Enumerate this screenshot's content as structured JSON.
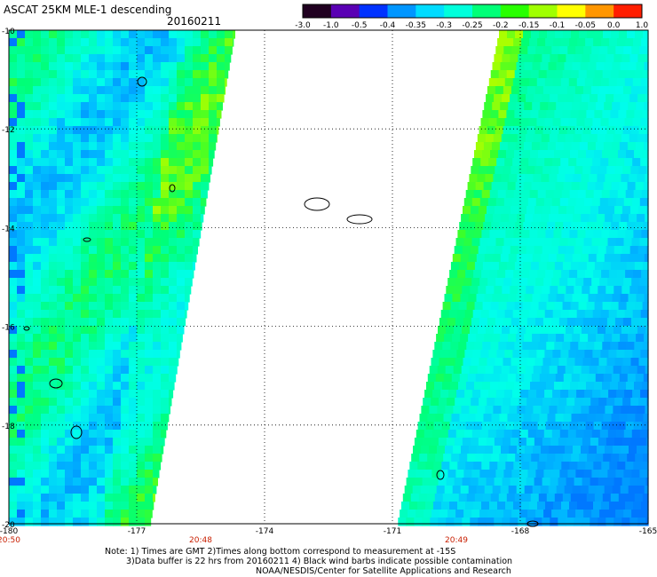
{
  "header": {
    "title": "ASCAT 25KM MLE-1 descending",
    "date": "20160211"
  },
  "colorbar": {
    "labels": [
      "-3.0",
      "-1.0",
      "-0.5",
      "-0.4",
      "-0.35",
      "-0.3",
      "-0.25",
      "-0.2",
      "-0.15",
      "-0.1",
      "-0.05",
      "0.0",
      "1.0"
    ],
    "colors": [
      "#200020",
      "#5a00b4",
      "#0032ff",
      "#0096ff",
      "#00dcff",
      "#00ffdc",
      "#00ff78",
      "#28ff00",
      "#a0ff00",
      "#ffff00",
      "#ff9600",
      "#ff1e00"
    ]
  },
  "chart_data": {
    "type": "heatmap",
    "title": "ASCAT 25KM MLE-1 descending 20160211",
    "x_ticks": [
      "-180",
      "-177",
      "-174",
      "-171",
      "-168",
      "-165"
    ],
    "y_ticks": [
      "-10",
      "-12",
      "-14",
      "-16",
      "-18",
      "-20"
    ],
    "xlim": [
      -180,
      -165
    ],
    "ylim": [
      -20,
      -10
    ],
    "time_labels": [
      {
        "lon": -180,
        "text": "20:50"
      },
      {
        "lon": -175.5,
        "text": "20:48"
      },
      {
        "lon": -169.5,
        "text": "20:49"
      }
    ],
    "grid": true,
    "swaths": [
      {
        "name": "west swath",
        "lon_range_at_top": [
          -180,
          -174.7
        ],
        "lon_range_at_bottom": [
          -180,
          -176.7
        ],
        "dominant_values": [
          -0.3,
          -0.25,
          -0.2
        ]
      },
      {
        "name": "east swath",
        "lon_range_at_top": [
          -168.5,
          -165
        ],
        "lon_range_at_bottom": [
          -170.9,
          -165
        ],
        "dominant_values": [
          -0.35,
          -0.3,
          -0.25,
          -0.2
        ]
      }
    ]
  },
  "footer": {
    "line1": "Note: 1) Times are GMT 2)Times along bottom correspond to measurement at -15S",
    "line2": "3)Data buffer is 22 hrs from 20160211 4) Black wind barbs indicate possible contamination",
    "line3": "NOAA/NESDIS/Center for Satellite Applications and Research"
  }
}
